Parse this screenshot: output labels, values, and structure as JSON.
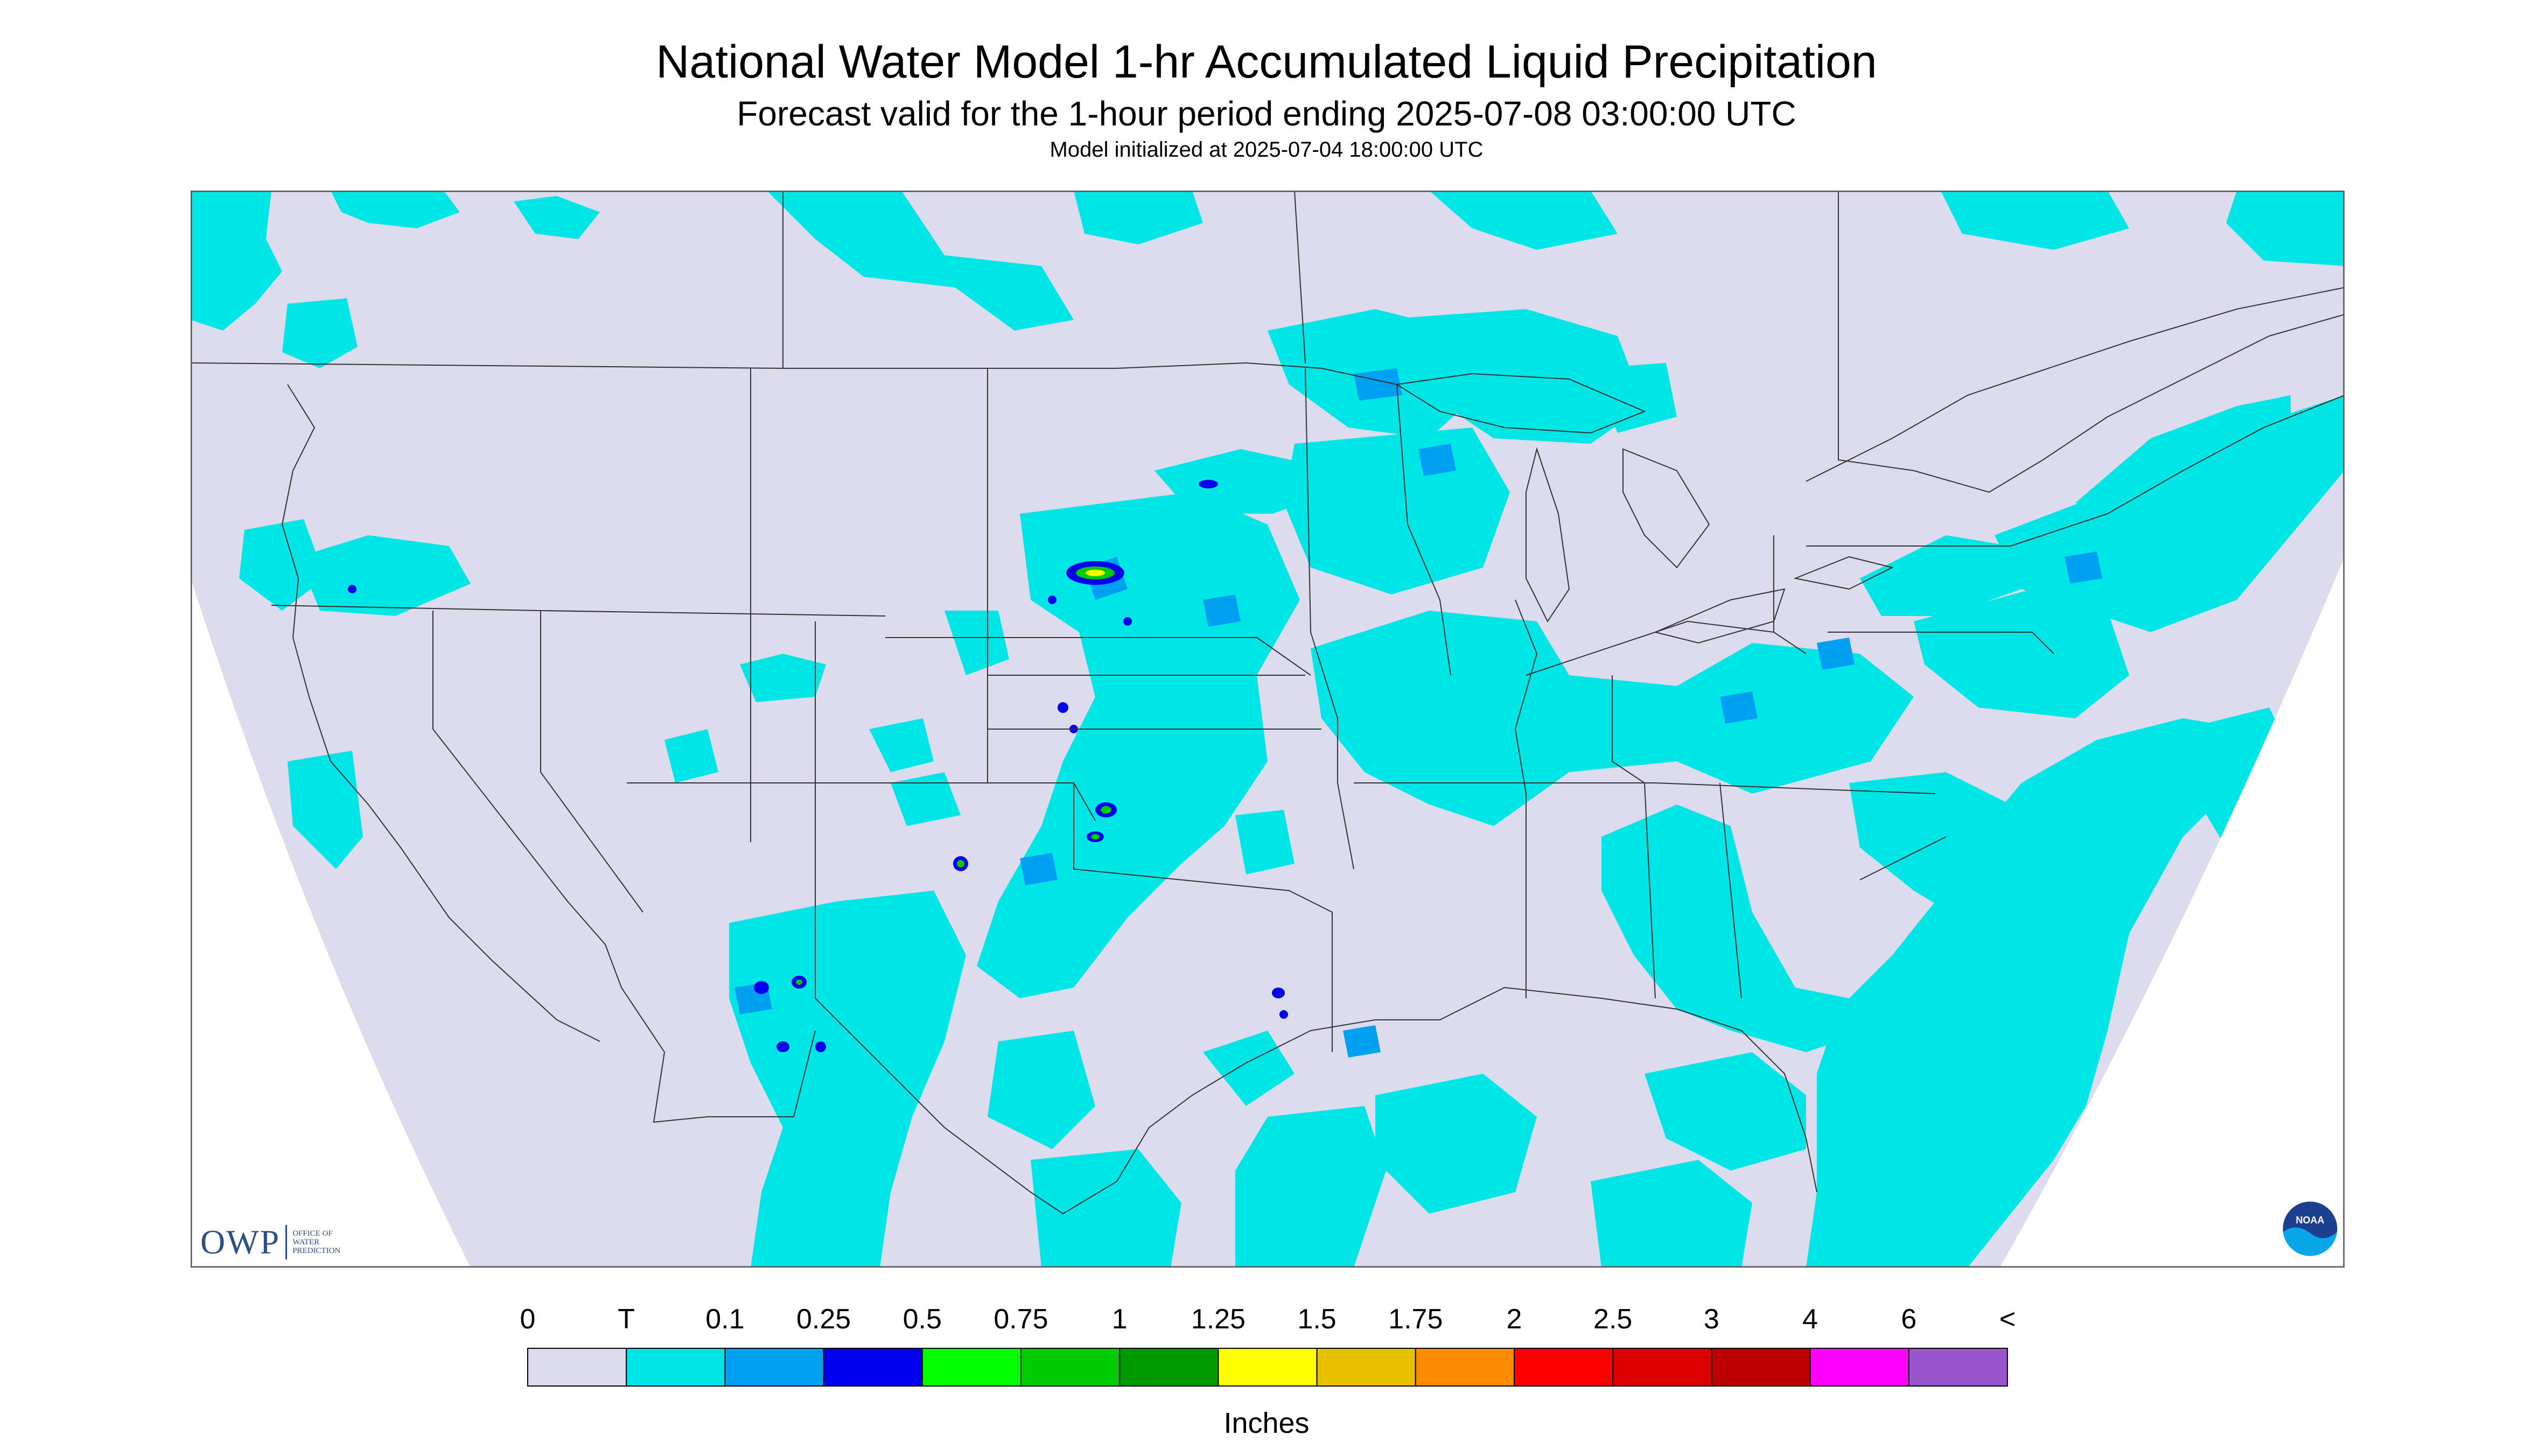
{
  "title": "National Water Model 1-hr Accumulated Liquid Precipitation",
  "subtitle": "Forecast valid for the 1-hour period ending 2025-07-08 03:00:00 UTC",
  "init_line": "Model initialized at 2025-07-04 18:00:00 UTC",
  "legend": {
    "tick_labels": [
      "0",
      "T",
      "0.1",
      "0.25",
      "0.5",
      "0.75",
      "1",
      "1.25",
      "1.5",
      "1.75",
      "2",
      "2.5",
      "3",
      "4",
      "6",
      "<"
    ],
    "colors": [
      "#dcdcee",
      "#00e5e5",
      "#00a0f0",
      "#0000ee",
      "#00ff00",
      "#00cc00",
      "#009a00",
      "#ffff00",
      "#e8c200",
      "#ff8c00",
      "#ff0000",
      "#dd0000",
      "#bb0000",
      "#ff00ff",
      "#9955cc"
    ],
    "units": "Inches"
  },
  "logos": {
    "owp_text": "OWP",
    "owp_subtext": [
      "OFFICE OF",
      "WATER",
      "PREDICTION"
    ],
    "noaa_text": "NOAA"
  },
  "map": {
    "background_color": "#dcdcee",
    "trace_color": "#00e5e5",
    "light_color": "#00a0f0",
    "heavy_color": "#0000ee",
    "outside_color": "#ffffff"
  }
}
